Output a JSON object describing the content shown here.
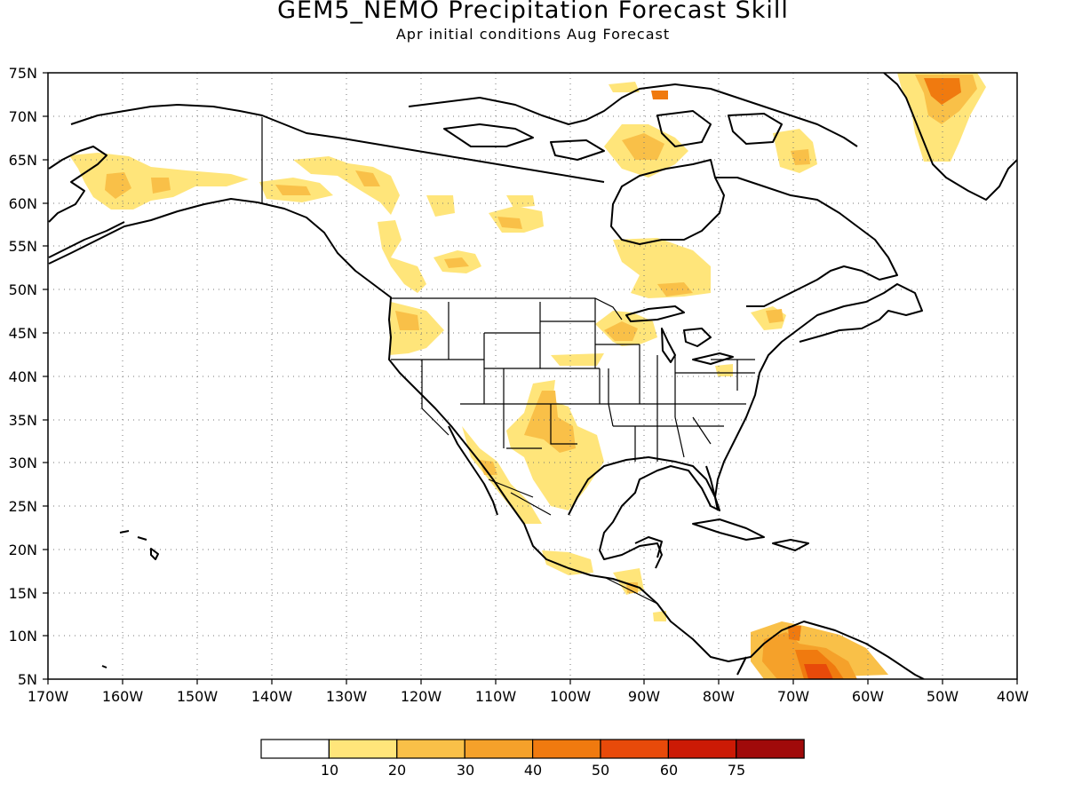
{
  "header": {
    "title": "GEM5_NEMO Precipitation Forecast Skill",
    "subtitle": "Apr initial conditions  Aug Forecast"
  },
  "map": {
    "lat_labels": [
      "75N",
      "70N",
      "65N",
      "60N",
      "55N",
      "50N",
      "45N",
      "40N",
      "35N",
      "30N",
      "25N",
      "20N",
      "15N",
      "10N",
      "5N"
    ],
    "lon_labels": [
      "170W",
      "160W",
      "150W",
      "140W",
      "130W",
      "120W",
      "110W",
      "100W",
      "90W",
      "80W",
      "70W",
      "60W",
      "50W",
      "40W"
    ],
    "extent": {
      "lon_min": -170,
      "lon_max": -40,
      "lat_min": 5,
      "lat_max": 75
    },
    "gridlines": "dotted",
    "land_outline_color": "#000000"
  },
  "legend": {
    "ticks": [
      "10",
      "20",
      "30",
      "40",
      "50",
      "60",
      "75"
    ],
    "colors": [
      "#ffffff",
      "#ffe57a",
      "#f9c048",
      "#f5a12a",
      "#f07a0f",
      "#e84a0a",
      "#cc1a05",
      "#a00a0a"
    ]
  },
  "skill_regions": [
    {
      "name": "alaska",
      "level": 1
    },
    {
      "name": "yukon",
      "level": 1
    },
    {
      "name": "british-columbia",
      "level": 1
    },
    {
      "name": "prairies",
      "level": 1
    },
    {
      "name": "hudson-bay-north",
      "level": 1
    },
    {
      "name": "baffin",
      "level": 2
    },
    {
      "name": "greenland",
      "level": 3
    },
    {
      "name": "great-lakes",
      "level": 2
    },
    {
      "name": "quebec",
      "level": 1
    },
    {
      "name": "pacific-northwest",
      "level": 1
    },
    {
      "name": "new-mexico-texas",
      "level": 2
    },
    {
      "name": "baja-mexico",
      "level": 1
    },
    {
      "name": "central-america",
      "level": 1
    },
    {
      "name": "venezuela",
      "level": 4
    }
  ]
}
